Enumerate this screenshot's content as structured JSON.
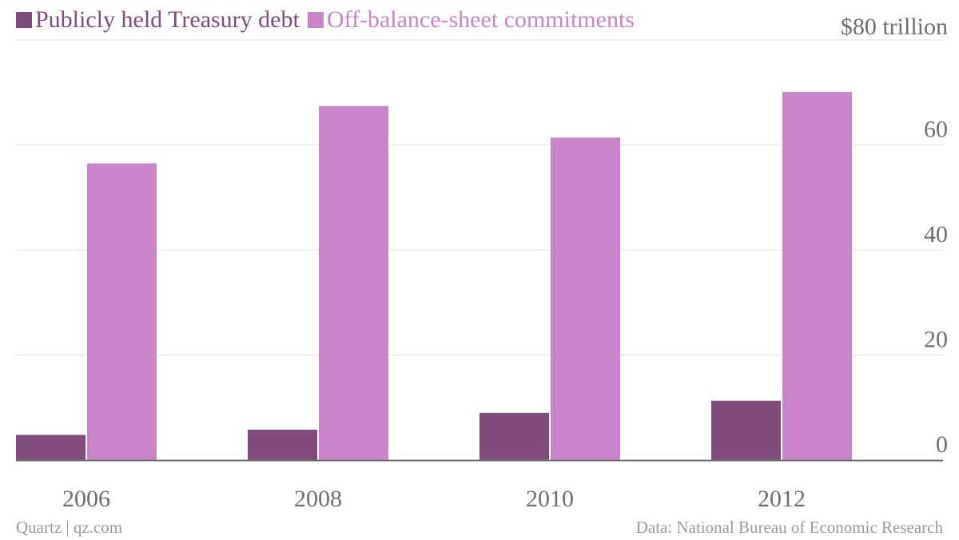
{
  "chart_data": {
    "type": "bar",
    "title": "",
    "xlabel": "",
    "ylabel": "",
    "y_unit_label": "$80 trillion",
    "categories": [
      "2006",
      "2008",
      "2010",
      "2012"
    ],
    "series": [
      {
        "name": "Publicly held Treasury debt",
        "values": [
          4.8,
          5.8,
          9.0,
          11.3
        ],
        "color": "#824b7e"
      },
      {
        "name": "Off-balance-sheet commitments",
        "values": [
          56.5,
          67.4,
          61.4,
          70.1
        ],
        "color": "#c984cb"
      }
    ],
    "yticks": [
      "0",
      "20",
      "40",
      "60"
    ],
    "ylim": [
      0,
      80
    ],
    "grid": true,
    "legend_position": "top-left"
  },
  "footer": {
    "source_left": "Quartz | qz.com",
    "source_right": "Data: National Bureau of Economic Research"
  },
  "colors": {
    "grid": "#e3e3e3",
    "axis": "#6e6e6e",
    "tick_text": "#6e6e6e"
  }
}
